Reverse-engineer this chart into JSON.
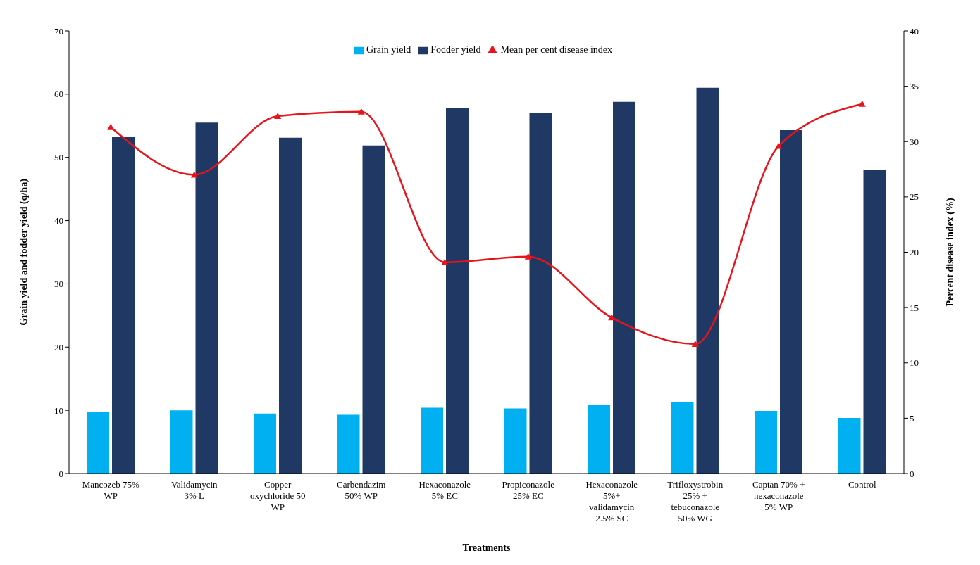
{
  "chart_data": {
    "type": "bar",
    "xlabel": "Treatments",
    "ylabel": "Grain yield and fodder yield (q/ha)",
    "y2label": "Percent disease index (%)",
    "categories": [
      "Mancozeb 75%\nWP",
      "Validamycin\n3% L",
      "Copper\noxychloride 50\nWP",
      "Carbendazim\n50% WP",
      "Hexaconazole\n5% EC",
      "Propiconazole\n25% EC",
      "Hexaconazole\n5%+\nvalidamycin\n2.5% SC",
      "Trifloxystrobin\n25% +\ntebuconazole\n50% WG",
      "Captan 70% +\nhexaconazole\n5% WP",
      "Control"
    ],
    "series": [
      {
        "name": "Grain yield",
        "color": "#00b0f0",
        "values": [
          9.7,
          10.0,
          9.5,
          9.3,
          10.4,
          10.3,
          10.9,
          11.3,
          9.9,
          8.8
        ]
      },
      {
        "name": "Fodder yield",
        "color": "#1f3864",
        "values": [
          53.3,
          55.5,
          53.1,
          51.9,
          57.8,
          57.0,
          58.8,
          61.0,
          54.3,
          48.0
        ]
      },
      {
        "name": "Mean per cent disease index",
        "type": "line",
        "axis": "y2",
        "color": "#e8141b",
        "marker": "triangle",
        "values": [
          31.3,
          27.0,
          32.3,
          32.7,
          19.1,
          19.6,
          14.1,
          11.7,
          29.6,
          33.4
        ]
      }
    ],
    "ylim": [
      0,
      70
    ],
    "yticks": [
      0,
      10,
      20,
      30,
      40,
      50,
      60,
      70
    ],
    "y2lim": [
      0,
      40
    ],
    "y2ticks": [
      0,
      5,
      10,
      15,
      20,
      25,
      30,
      35,
      40
    ],
    "legend": "top"
  }
}
